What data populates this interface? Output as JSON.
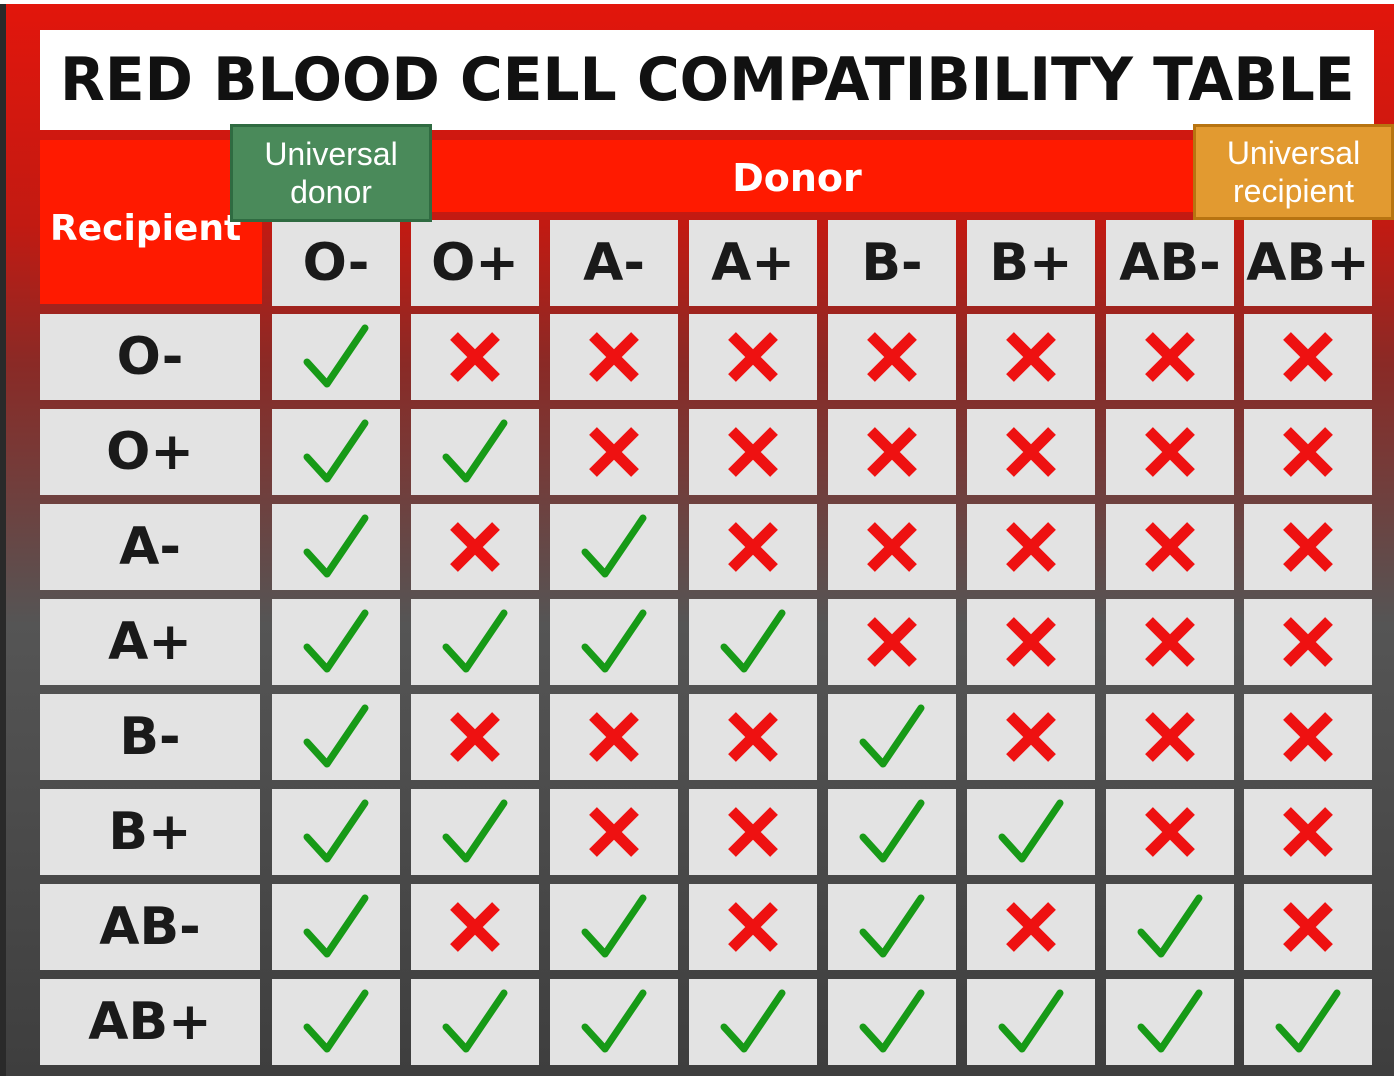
{
  "title": "RED BLOOD CELL COMPATIBILITY TABLE",
  "donor_label": "Donor",
  "recipient_label": "Recipient",
  "tags": {
    "universal_donor": "Universal donor",
    "universal_recipient": "Universal recipient"
  },
  "colors": {
    "header_red": "#ff1a00",
    "cell_gray": "#e3e3e3",
    "check_green": "#179a17",
    "cross_red": "#ee1111",
    "universal_donor_green": "#4a8a5a",
    "universal_recipient_orange": "#e29a30"
  },
  "icons": {
    "compatible": "check-icon",
    "incompatible": "cross-icon"
  },
  "donor_types": [
    "O-",
    "O+",
    "A-",
    "A+",
    "B-",
    "B+",
    "AB-",
    "AB+"
  ],
  "recipient_types": [
    "O-",
    "O+",
    "A-",
    "A+",
    "B-",
    "B+",
    "AB-",
    "AB+"
  ],
  "compatibility": [
    [
      true,
      false,
      false,
      false,
      false,
      false,
      false,
      false
    ],
    [
      true,
      true,
      false,
      false,
      false,
      false,
      false,
      false
    ],
    [
      true,
      false,
      true,
      false,
      false,
      false,
      false,
      false
    ],
    [
      true,
      true,
      true,
      true,
      false,
      false,
      false,
      false
    ],
    [
      true,
      false,
      false,
      false,
      true,
      false,
      false,
      false
    ],
    [
      true,
      true,
      false,
      false,
      true,
      true,
      false,
      false
    ],
    [
      true,
      false,
      true,
      false,
      true,
      false,
      true,
      false
    ],
    [
      true,
      true,
      true,
      true,
      true,
      true,
      true,
      true
    ]
  ]
}
